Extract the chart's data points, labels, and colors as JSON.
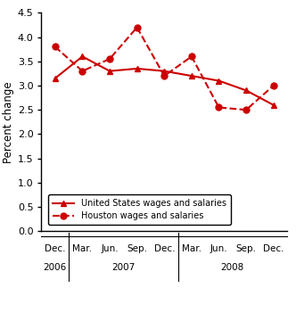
{
  "us_x": [
    0,
    1,
    2,
    3,
    4,
    5,
    6,
    7,
    8
  ],
  "us_y": [
    3.15,
    3.6,
    3.3,
    3.35,
    3.3,
    3.2,
    3.1,
    2.9,
    2.6
  ],
  "houston_x": [
    0,
    1,
    2,
    3,
    4,
    5,
    6,
    7,
    8
  ],
  "houston_y": [
    3.8,
    3.3,
    3.55,
    4.2,
    3.2,
    3.6,
    2.55,
    2.5,
    3.0
  ],
  "xtick_top_labels": [
    "Dec.",
    "Mar.",
    "Jun.",
    "Sep.",
    "Dec.",
    "Mar.",
    "Jun.",
    "Sep.",
    "Dec."
  ],
  "year_groups": [
    {
      "label": "2006",
      "positions": [
        0
      ]
    },
    {
      "label": "2007",
      "positions": [
        1,
        2,
        3,
        4
      ]
    },
    {
      "label": "2008",
      "positions": [
        5,
        6,
        7,
        8
      ]
    }
  ],
  "ylabel": "Percent change",
  "ylim": [
    0.0,
    4.5
  ],
  "yticks": [
    0.0,
    0.5,
    1.0,
    1.5,
    2.0,
    2.5,
    3.0,
    3.5,
    4.0,
    4.5
  ],
  "line_color": "#CC0000",
  "legend_us": "United States wages and salaries",
  "legend_houston": "Houston wages and salaries"
}
